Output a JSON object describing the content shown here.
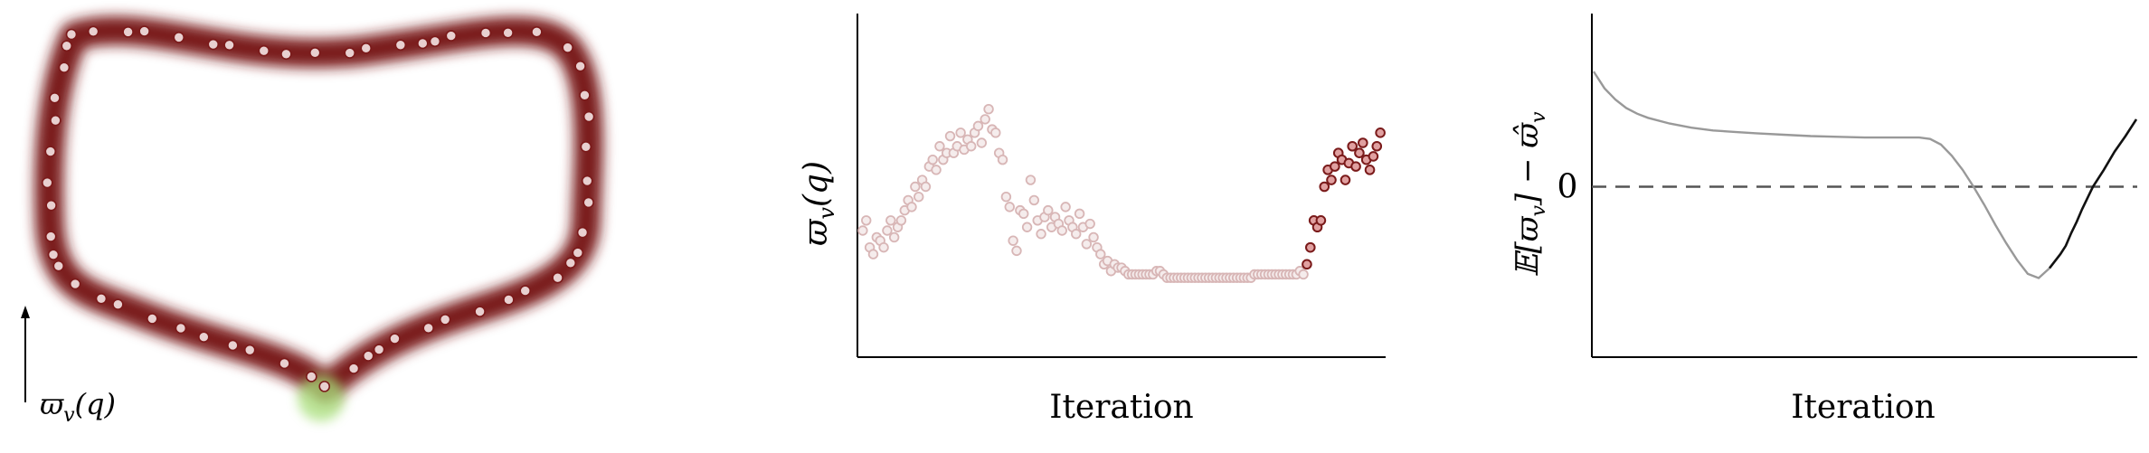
{
  "chart_data": [
    {
      "type": "diagram",
      "ylabel": "ϖ",
      "ylabel_sub": "v",
      "ylabel_arg": "(q)",
      "ring_color": "#7a1a1a",
      "sample_fill": "#e8d0d0",
      "sample_stroke": "#7a1a1a",
      "highlight_color": "#a8e07a"
    },
    {
      "type": "scatter",
      "xlabel": "Iteration",
      "ylabel": "ϖ",
      "ylabel_sub": "v",
      "ylabel_arg": "(q)",
      "xlim": [
        0,
        150
      ],
      "ylim": [
        0,
        1
      ],
      "faded_fill": "#f5ecec",
      "faded_stroke": "#d8b6b6",
      "strong_fill": "#e0a0a0",
      "strong_stroke": "#7a1a1a",
      "x": [
        1,
        2,
        3,
        4,
        5,
        6,
        7,
        8,
        9,
        10,
        11,
        12,
        13,
        14,
        15,
        16,
        17,
        18,
        19,
        20,
        21,
        22,
        23,
        24,
        25,
        26,
        27,
        28,
        29,
        30,
        31,
        32,
        33,
        34,
        35,
        36,
        37,
        38,
        39,
        40,
        41,
        42,
        43,
        44,
        45,
        46,
        47,
        48,
        49,
        50,
        51,
        52,
        53,
        54,
        55,
        56,
        57,
        58,
        59,
        60,
        61,
        62,
        63,
        64,
        65,
        66,
        67,
        68,
        69,
        70,
        71,
        72,
        73,
        74,
        75,
        76,
        77,
        78,
        79,
        80,
        81,
        82,
        83,
        84,
        85,
        86,
        87,
        88,
        89,
        90,
        91,
        92,
        93,
        94,
        95,
        96,
        97,
        98,
        99,
        100,
        101,
        102,
        103,
        104,
        105,
        106,
        107,
        108,
        109,
        110,
        111,
        112,
        113,
        114,
        115,
        116,
        117,
        118,
        119,
        120,
        121,
        122,
        123,
        124,
        125,
        126,
        127,
        128,
        129,
        130,
        131,
        132,
        133,
        134,
        135,
        136,
        137,
        138,
        139,
        140,
        141,
        142,
        143,
        144,
        145,
        146,
        147,
        148,
        149
      ],
      "y": [
        0.37,
        0.4,
        0.32,
        0.3,
        0.35,
        0.34,
        0.32,
        0.37,
        0.4,
        0.35,
        0.38,
        0.4,
        0.43,
        0.46,
        0.44,
        0.5,
        0.47,
        0.52,
        0.5,
        0.56,
        0.58,
        0.55,
        0.62,
        0.58,
        0.6,
        0.65,
        0.6,
        0.62,
        0.66,
        0.61,
        0.64,
        0.62,
        0.66,
        0.68,
        0.63,
        0.7,
        0.73,
        0.67,
        0.66,
        0.6,
        0.58,
        0.47,
        0.44,
        0.34,
        0.31,
        0.43,
        0.42,
        0.38,
        0.52,
        0.46,
        0.4,
        0.36,
        0.41,
        0.43,
        0.38,
        0.41,
        0.39,
        0.37,
        0.44,
        0.4,
        0.38,
        0.36,
        0.42,
        0.38,
        0.33,
        0.39,
        0.35,
        0.32,
        0.3,
        0.27,
        0.28,
        0.25,
        0.27,
        0.26,
        0.26,
        0.25,
        0.24,
        0.24,
        0.24,
        0.24,
        0.24,
        0.24,
        0.24,
        0.24,
        0.25,
        0.25,
        0.24,
        0.23,
        0.23,
        0.23,
        0.23,
        0.23,
        0.23,
        0.23,
        0.23,
        0.23,
        0.23,
        0.23,
        0.23,
        0.23,
        0.23,
        0.23,
        0.23,
        0.23,
        0.23,
        0.23,
        0.23,
        0.23,
        0.23,
        0.23,
        0.23,
        0.23,
        0.24,
        0.24,
        0.24,
        0.24,
        0.24,
        0.24,
        0.24,
        0.24,
        0.24,
        0.24,
        0.24,
        0.24,
        0.24,
        0.25,
        0.24,
        0.27,
        0.32,
        0.4,
        0.38,
        0.4,
        0.5,
        0.55,
        0.52,
        0.56,
        0.6,
        0.58,
        0.52,
        0.57,
        0.62,
        0.56,
        0.6,
        0.63,
        0.58,
        0.55,
        0.59,
        0.62,
        0.66
      ],
      "highlight_from_index": 127
    },
    {
      "type": "line",
      "xlabel": "Iteration",
      "ylabel": "𝔼[ϖ",
      "ylabel_sub": "v",
      "ylabel_rest": "] − ϖ̂",
      "ylabel_sub2": "v",
      "ytick": "0",
      "xlim": [
        0,
        100
      ],
      "ylim": [
        -1.2,
        1.2
      ],
      "reference_line": 0,
      "faded_color": "#999999",
      "strong_color": "#111111",
      "x": [
        0,
        2,
        4,
        6,
        8,
        10,
        14,
        18,
        22,
        26,
        30,
        35,
        40,
        45,
        50,
        55,
        60,
        62,
        64,
        66,
        68,
        70,
        72,
        74,
        76,
        78,
        80,
        82,
        84,
        86,
        87,
        88,
        89,
        90,
        92,
        94,
        96,
        98,
        100
      ],
      "y": [
        0.82,
        0.7,
        0.62,
        0.56,
        0.52,
        0.49,
        0.45,
        0.42,
        0.4,
        0.39,
        0.38,
        0.37,
        0.36,
        0.355,
        0.35,
        0.35,
        0.35,
        0.34,
        0.3,
        0.22,
        0.12,
        0.0,
        -0.13,
        -0.27,
        -0.4,
        -0.52,
        -0.62,
        -0.65,
        -0.58,
        -0.48,
        -0.42,
        -0.33,
        -0.25,
        -0.16,
        0.0,
        0.12,
        0.25,
        0.36,
        0.48
      ],
      "strong_from_x": 84
    }
  ]
}
